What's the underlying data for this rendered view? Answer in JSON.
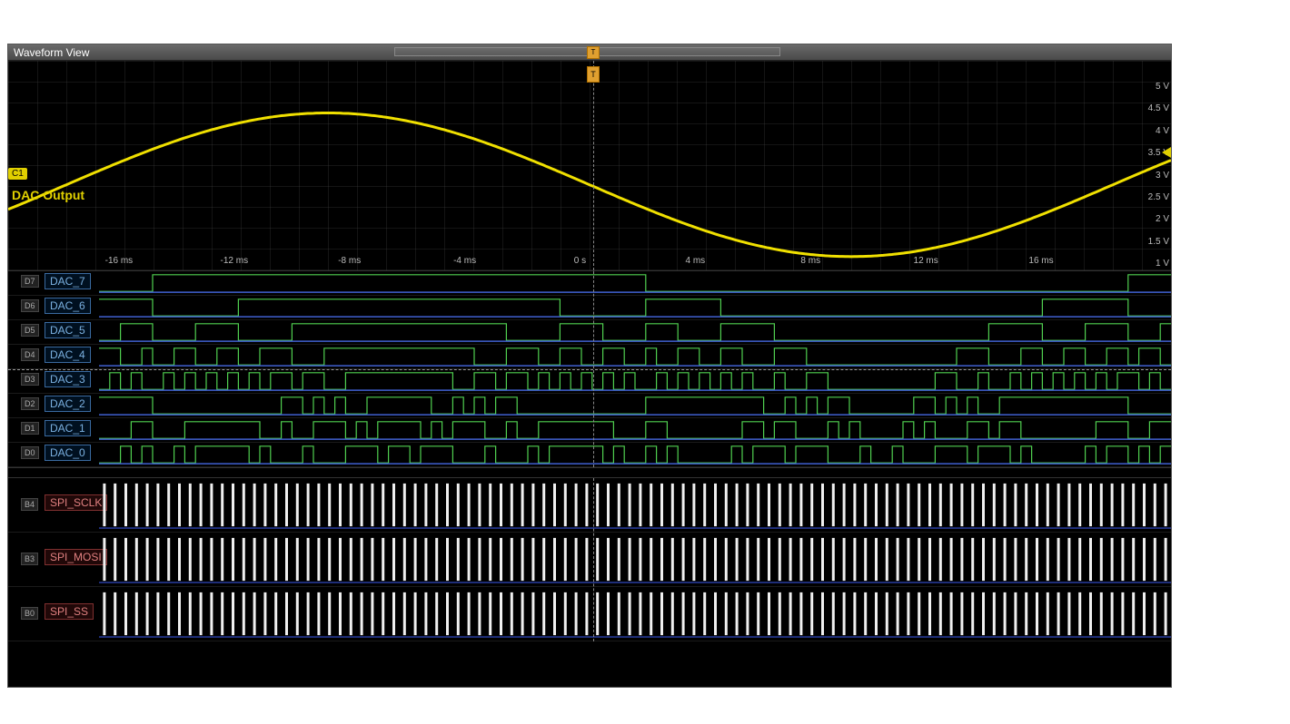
{
  "window": {
    "title": "Waveform View"
  },
  "trigger": {
    "marker_char": "T",
    "flag_char": "T"
  },
  "analog": {
    "channel_tag": "C1",
    "label": "DAC Output",
    "color": "#f0e000",
    "vscale_labels": [
      "5 V",
      "4.5 V",
      "4 V",
      "3.5 V",
      "3 V",
      "2.5 V",
      "2 V",
      "1.5 V",
      "1 V"
    ],
    "hscale": [
      {
        "pos_pct": 9.8,
        "label": "-16 ms"
      },
      {
        "pos_pct": 20.0,
        "label": "-12 ms"
      },
      {
        "pos_pct": 30.2,
        "label": "-8 ms"
      },
      {
        "pos_pct": 40.4,
        "label": "-4 ms"
      },
      {
        "pos_pct": 50.6,
        "label": "0 s"
      },
      {
        "pos_pct": 60.8,
        "label": "4 ms"
      },
      {
        "pos_pct": 71.0,
        "label": "8 ms"
      },
      {
        "pos_pct": 81.2,
        "label": "12 ms"
      },
      {
        "pos_pct": 91.4,
        "label": "16 ms"
      }
    ],
    "sine": {
      "amplitude_v": 1.5,
      "offset_v": 2.75,
      "period_ms": 36,
      "phase_deg_at_0s": 180,
      "stroke_width": 3
    },
    "vmin": 1.0,
    "vmax": 5.0,
    "tmin_ms": -20,
    "tmax_ms": 20
  },
  "digital_dac": {
    "channels": [
      {
        "tag": "D7",
        "name": "DAC_7",
        "bit": 7
      },
      {
        "tag": "D6",
        "name": "DAC_6",
        "bit": 6
      },
      {
        "tag": "D5",
        "name": "DAC_5",
        "bit": 5
      },
      {
        "tag": "D4",
        "name": "DAC_4",
        "bit": 4
      },
      {
        "tag": "D3",
        "name": "DAC_3",
        "bit": 3
      },
      {
        "tag": "D2",
        "name": "DAC_2",
        "bit": 2
      },
      {
        "tag": "D1",
        "name": "DAC_1",
        "bit": 1
      },
      {
        "tag": "D0",
        "name": "DAC_0",
        "bit": 0
      }
    ],
    "high_color": "#50d050",
    "low_color": "#4060d0",
    "samples": 100
  },
  "spi": {
    "channels": [
      {
        "tag": "B4",
        "name": "SPI_SCLK"
      },
      {
        "tag": "B3",
        "name": "SPI_MOSI"
      },
      {
        "tag": "B0",
        "name": "SPI_SS"
      }
    ],
    "burst_count": 100,
    "burst_color": "#f0f0f0"
  },
  "colors": {
    "bg": "#000000",
    "grid": "#404040",
    "text": "#bbbbbb"
  }
}
